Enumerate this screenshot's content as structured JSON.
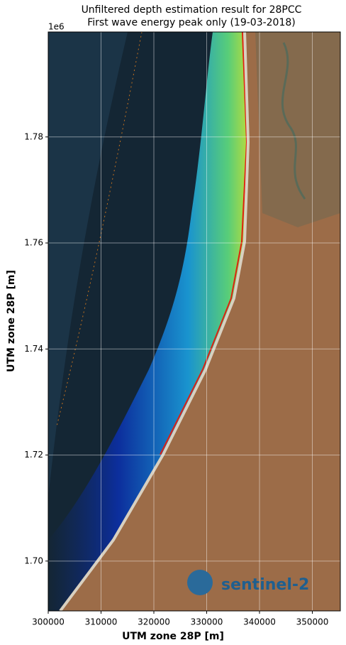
{
  "chart_data": {
    "type": "image",
    "title": "Unfiltered depth estimation result for 28PCC",
    "subtitle": "First wave energy peak only (19-03-2018)",
    "x_label": "UTM zone 28P [m]",
    "y_label": "UTM zone 28P [m]",
    "y_offset_label": "1e6",
    "xlim": [
      300000,
      355300
    ],
    "ylim": [
      1.6906,
      1.7998
    ],
    "xticks": [
      300000,
      310000,
      320000,
      330000,
      340000,
      350000
    ],
    "yticks": [
      {
        "value": 1.7,
        "label": "1.70"
      },
      {
        "value": 1.72,
        "label": "1.72"
      },
      {
        "value": 1.74,
        "label": "1.74"
      },
      {
        "value": 1.76,
        "label": "1.76"
      },
      {
        "value": 1.78,
        "label": "1.78"
      }
    ],
    "grid": true,
    "logo_text": "sentinel-2"
  }
}
